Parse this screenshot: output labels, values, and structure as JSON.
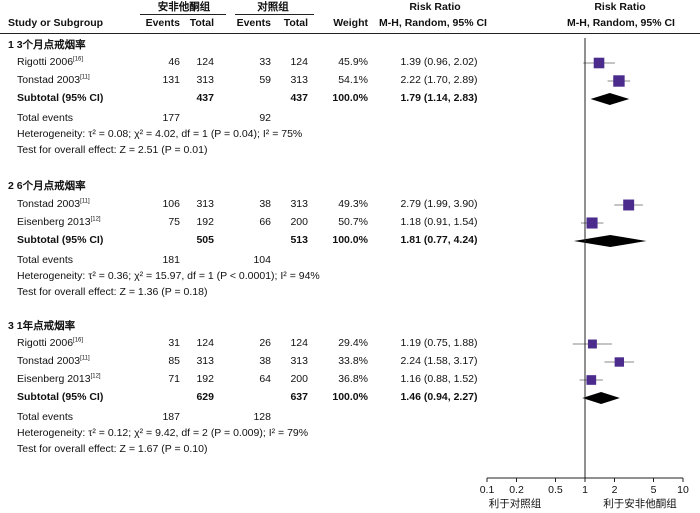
{
  "header": {
    "treat_group": "安非他酮组",
    "ctrl_group": "对照组",
    "rr_left": "Risk Ratio",
    "rr_right": "Risk Ratio",
    "study_col": "Study or Subgroup",
    "events": "Events",
    "total": "Total",
    "weight": "Weight",
    "method_left": "M-H, Random, 95% CI",
    "method_right": "M-H, Random, 95% CI"
  },
  "axis": {
    "ticks": [
      "0.1",
      "0.2",
      "0.5",
      "1",
      "2",
      "5",
      "10"
    ],
    "tick_values": [
      0.1,
      0.2,
      0.5,
      1,
      2,
      5,
      10
    ],
    "left_label": "利于对照组",
    "right_label": "利于安非他酮组"
  },
  "chart_data": {
    "type": "forest",
    "scale": "log",
    "xlim": [
      0.1,
      10
    ],
    "null_line": 1,
    "subgroups": [
      {
        "title": "1 3个月点戒烟率",
        "studies": [
          {
            "name": "Rigotti 2006",
            "ref": "[16]",
            "e1": "46",
            "n1": "124",
            "e2": "33",
            "n2": "124",
            "weight": "45.9%",
            "ci_text": "1.39 (0.96, 2.02)",
            "rr": 1.39,
            "lo": 0.96,
            "hi": 2.02
          },
          {
            "name": "Tonstad 2003",
            "ref": "[11]",
            "e1": "131",
            "n1": "313",
            "e2": "59",
            "n2": "313",
            "weight": "54.1%",
            "ci_text": "2.22 (1.70, 2.89)",
            "rr": 2.22,
            "lo": 1.7,
            "hi": 2.89
          }
        ],
        "subtotal": {
          "label": "Subtotal (95% CI)",
          "n1": "437",
          "n2": "437",
          "weight": "100.0%",
          "ci_text": "1.79 (1.14, 2.83)",
          "rr": 1.79,
          "lo": 1.14,
          "hi": 2.83
        },
        "total_events": {
          "label": "Total events",
          "e1": "177",
          "e2": "92"
        },
        "heterogeneity": "Heterogeneity: τ² = 0.08; χ² = 4.02, df = 1 (P = 0.04); I² = 75%",
        "overall": "Test for overall effect: Z = 2.51 (P = 0.01)"
      },
      {
        "title": "2 6个月点戒烟率",
        "studies": [
          {
            "name": "Tonstad 2003",
            "ref": "[11]",
            "e1": "106",
            "n1": "313",
            "e2": "38",
            "n2": "313",
            "weight": "49.3%",
            "ci_text": "2.79 (1.99, 3.90)",
            "rr": 2.79,
            "lo": 1.99,
            "hi": 3.9
          },
          {
            "name": "Eisenberg 2013",
            "ref": "[12]",
            "e1": "75",
            "n1": "192",
            "e2": "66",
            "n2": "200",
            "weight": "50.7%",
            "ci_text": "1.18 (0.91, 1.54)",
            "rr": 1.18,
            "lo": 0.91,
            "hi": 1.54
          }
        ],
        "subtotal": {
          "label": "Subtotal (95% CI)",
          "n1": "505",
          "n2": "513",
          "weight": "100.0%",
          "ci_text": "1.81 (0.77, 4.24)",
          "rr": 1.81,
          "lo": 0.77,
          "hi": 4.24
        },
        "total_events": {
          "label": "Total events",
          "e1": "181",
          "e2": "104"
        },
        "heterogeneity": "Heterogeneity: τ² = 0.36; χ² = 15.97, df = 1 (P < 0.0001); I² = 94%",
        "overall": "Test for overall effect: Z = 1.36 (P = 0.18)"
      },
      {
        "title": "3 1年点戒烟率",
        "studies": [
          {
            "name": "Rigotti 2006",
            "ref": "[16]",
            "e1": "31",
            "n1": "124",
            "e2": "26",
            "n2": "124",
            "weight": "29.4%",
            "ci_text": "1.19 (0.75, 1.88)",
            "rr": 1.19,
            "lo": 0.75,
            "hi": 1.88
          },
          {
            "name": "Tonstad 2003",
            "ref": "[11]",
            "e1": "85",
            "n1": "313",
            "e2": "38",
            "n2": "313",
            "weight": "33.8%",
            "ci_text": "2.24 (1.58, 3.17)",
            "rr": 2.24,
            "lo": 1.58,
            "hi": 3.17
          },
          {
            "name": "Eisenberg 2013",
            "ref": "[12]",
            "e1": "71",
            "n1": "192",
            "e2": "64",
            "n2": "200",
            "weight": "36.8%",
            "ci_text": "1.16 (0.88, 1.52)",
            "rr": 1.16,
            "lo": 0.88,
            "hi": 1.52
          }
        ],
        "subtotal": {
          "label": "Subtotal (95% CI)",
          "n1": "629",
          "n2": "637",
          "weight": "100.0%",
          "ci_text": "1.46 (0.94, 2.27)",
          "rr": 1.46,
          "lo": 0.94,
          "hi": 2.27
        },
        "total_events": {
          "label": "Total events",
          "e1": "187",
          "e2": "128"
        },
        "heterogeneity": "Heterogeneity: τ² = 0.12; χ² = 9.42, df = 2 (P = 0.009); I² = 79%",
        "overall": "Test for overall effect: Z = 1.67 (P = 0.10)"
      }
    ]
  }
}
